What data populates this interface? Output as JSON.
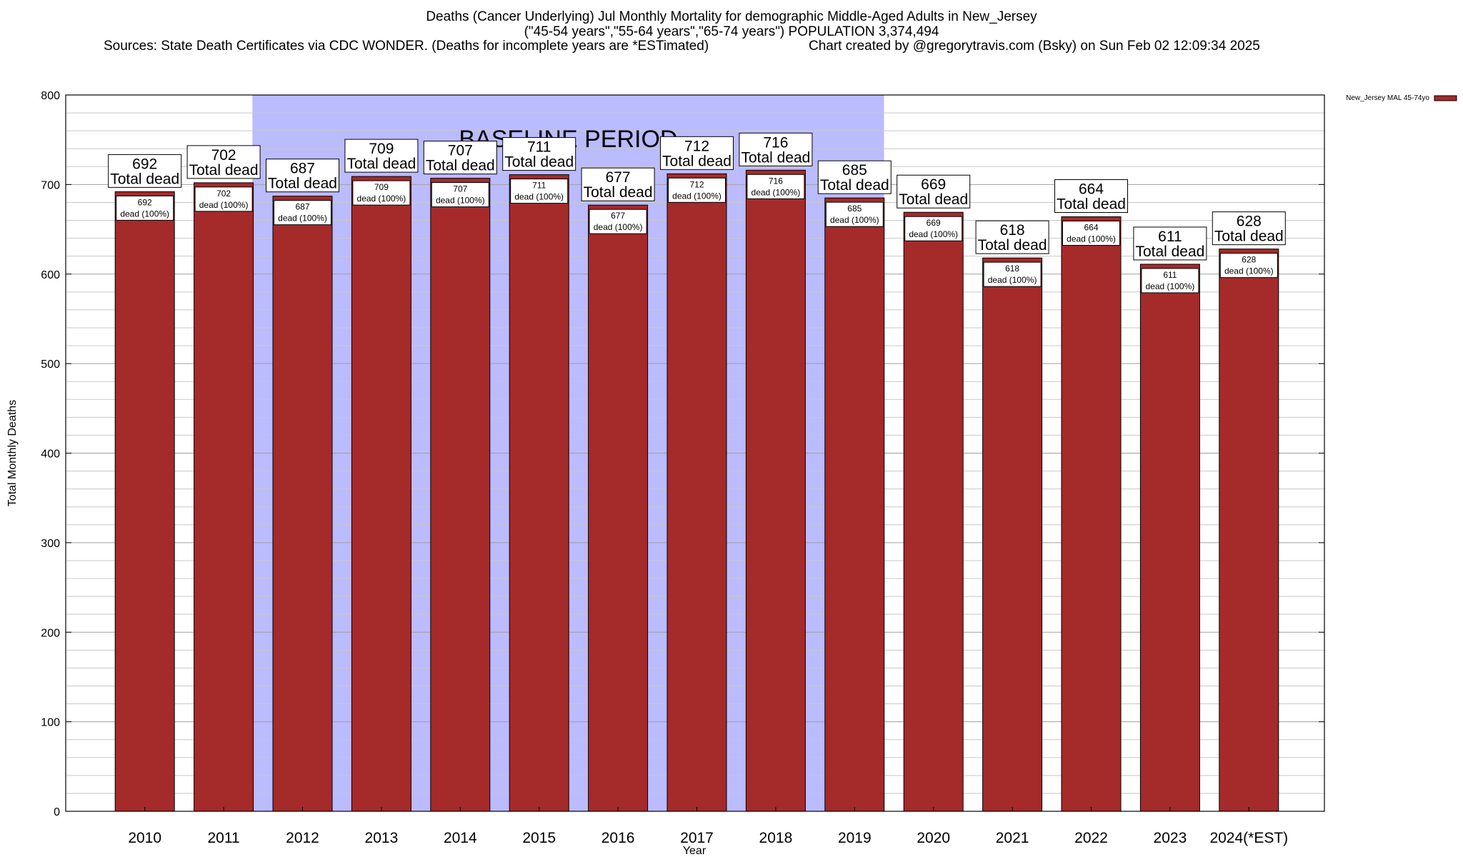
{
  "header": {
    "title_line1": "Deaths (Cancer Underlying) Jul Monthly Mortality for demographic Middle-Aged Adults in New_Jersey",
    "title_line2": "(\"45-54 years\",\"55-64 years\",\"65-74 years\") POPULATION 3,374,494",
    "sources": "Sources: State Death Certificates via CDC WONDER. (Deaths for incomplete years are *ESTimated)",
    "credit": "Chart created by @gregorytravis.com (Bsky) on Sun Feb 02 12:09:34 2025"
  },
  "chart_data": {
    "type": "bar",
    "categories": [
      "2010",
      "2011",
      "2012",
      "2013",
      "2014",
      "2015",
      "2016",
      "2017",
      "2018",
      "2019",
      "2020",
      "2021",
      "2022",
      "2023",
      "2024(*EST)"
    ],
    "series": [
      {
        "name": "New_Jersey MAL 45-74yo",
        "values": [
          692,
          702,
          687,
          709,
          707,
          711,
          677,
          712,
          716,
          685,
          669,
          618,
          664,
          611,
          628
        ]
      }
    ],
    "total_label": "Total dead",
    "bar_label_suffix": "dead (100%)",
    "baseline": {
      "label": "BASELINE PERIOD",
      "from": "2012",
      "to": "2019",
      "color": "#bbbbff"
    },
    "xlabel": "Year",
    "ylabel": "Total Monthly Deaths",
    "ylim": [
      0,
      800
    ],
    "yticks": [
      0,
      100,
      200,
      300,
      400,
      500,
      600,
      700,
      800
    ],
    "grid": true,
    "legend_position": "top-right",
    "bar_color": "#a52a2a"
  }
}
